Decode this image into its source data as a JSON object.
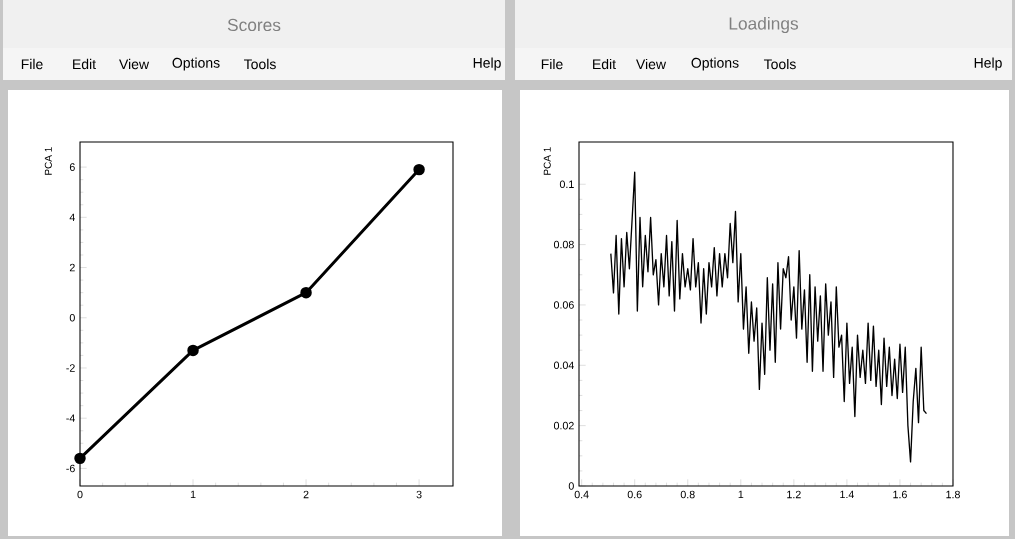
{
  "chart_data": [
    {
      "type": "line",
      "title": "Scores",
      "ylabel": "PCA 1",
      "color": "#000000",
      "marker": "circle",
      "annotations": [
        "File",
        "Edit",
        "View",
        "Options",
        "Tools",
        "Help"
      ],
      "x": [
        0,
        1,
        2,
        3
      ],
      "values": [
        -5.6,
        -1.3,
        1.0,
        5.9
      ],
      "xlim": [
        0,
        3.3
      ],
      "ylim": [
        -6.7,
        7
      ],
      "xticks": [
        0,
        1,
        2,
        3
      ],
      "yticks": [
        -6,
        -4,
        -2,
        0,
        2,
        4,
        6
      ]
    },
    {
      "type": "line",
      "title": "Loadings",
      "ylabel": "PCA 1",
      "color": "#000000",
      "marker": "none",
      "annotations": [
        "File",
        "Edit",
        "View",
        "Options",
        "Tools",
        "Help"
      ],
      "x": [
        0.51,
        0.52,
        0.53,
        0.54,
        0.55,
        0.56,
        0.57,
        0.58,
        0.59,
        0.6,
        0.61,
        0.62,
        0.63,
        0.64,
        0.65,
        0.66,
        0.67,
        0.68,
        0.69,
        0.7,
        0.71,
        0.72,
        0.73,
        0.74,
        0.75,
        0.76,
        0.77,
        0.78,
        0.79,
        0.8,
        0.81,
        0.82,
        0.83,
        0.84,
        0.85,
        0.86,
        0.87,
        0.88,
        0.89,
        0.9,
        0.91,
        0.92,
        0.93,
        0.94,
        0.95,
        0.96,
        0.97,
        0.98,
        0.99,
        1.0,
        1.01,
        1.02,
        1.03,
        1.04,
        1.05,
        1.06,
        1.07,
        1.08,
        1.09,
        1.1,
        1.11,
        1.12,
        1.13,
        1.14,
        1.15,
        1.16,
        1.17,
        1.18,
        1.19,
        1.2,
        1.21,
        1.22,
        1.23,
        1.24,
        1.25,
        1.26,
        1.27,
        1.28,
        1.29,
        1.3,
        1.31,
        1.32,
        1.33,
        1.34,
        1.35,
        1.36,
        1.37,
        1.38,
        1.39,
        1.4,
        1.41,
        1.42,
        1.43,
        1.44,
        1.45,
        1.46,
        1.47,
        1.48,
        1.49,
        1.5,
        1.51,
        1.52,
        1.53,
        1.54,
        1.55,
        1.56,
        1.57,
        1.58,
        1.59,
        1.6,
        1.61,
        1.62,
        1.63,
        1.64,
        1.65,
        1.66,
        1.67,
        1.68,
        1.69,
        1.7
      ],
      "values": [
        0.077,
        0.064,
        0.083,
        0.057,
        0.082,
        0.066,
        0.084,
        0.072,
        0.088,
        0.104,
        0.058,
        0.089,
        0.066,
        0.083,
        0.071,
        0.089,
        0.07,
        0.075,
        0.06,
        0.077,
        0.066,
        0.083,
        0.063,
        0.081,
        0.058,
        0.088,
        0.062,
        0.077,
        0.066,
        0.072,
        0.065,
        0.082,
        0.066,
        0.074,
        0.054,
        0.072,
        0.057,
        0.074,
        0.066,
        0.079,
        0.063,
        0.077,
        0.066,
        0.077,
        0.069,
        0.087,
        0.074,
        0.091,
        0.061,
        0.077,
        0.052,
        0.066,
        0.044,
        0.061,
        0.048,
        0.059,
        0.032,
        0.054,
        0.037,
        0.069,
        0.045,
        0.067,
        0.041,
        0.074,
        0.052,
        0.072,
        0.069,
        0.076,
        0.055,
        0.066,
        0.049,
        0.078,
        0.052,
        0.065,
        0.041,
        0.07,
        0.038,
        0.066,
        0.048,
        0.063,
        0.038,
        0.067,
        0.05,
        0.061,
        0.036,
        0.066,
        0.046,
        0.05,
        0.028,
        0.054,
        0.034,
        0.046,
        0.023,
        0.05,
        0.036,
        0.045,
        0.034,
        0.054,
        0.035,
        0.053,
        0.033,
        0.045,
        0.027,
        0.049,
        0.033,
        0.046,
        0.03,
        0.042,
        0.029,
        0.047,
        0.031,
        0.046,
        0.02,
        0.008,
        0.028,
        0.039,
        0.021,
        0.046,
        0.025,
        0.024
      ],
      "xlim": [
        0.39,
        1.8
      ],
      "ylim": [
        0,
        0.114
      ],
      "xticks": [
        0.4,
        0.6,
        0.8,
        1,
        1.2,
        1.4,
        1.6,
        1.8
      ],
      "yticks": [
        0,
        0.02,
        0.04,
        0.06,
        0.08,
        0.1
      ]
    }
  ]
}
